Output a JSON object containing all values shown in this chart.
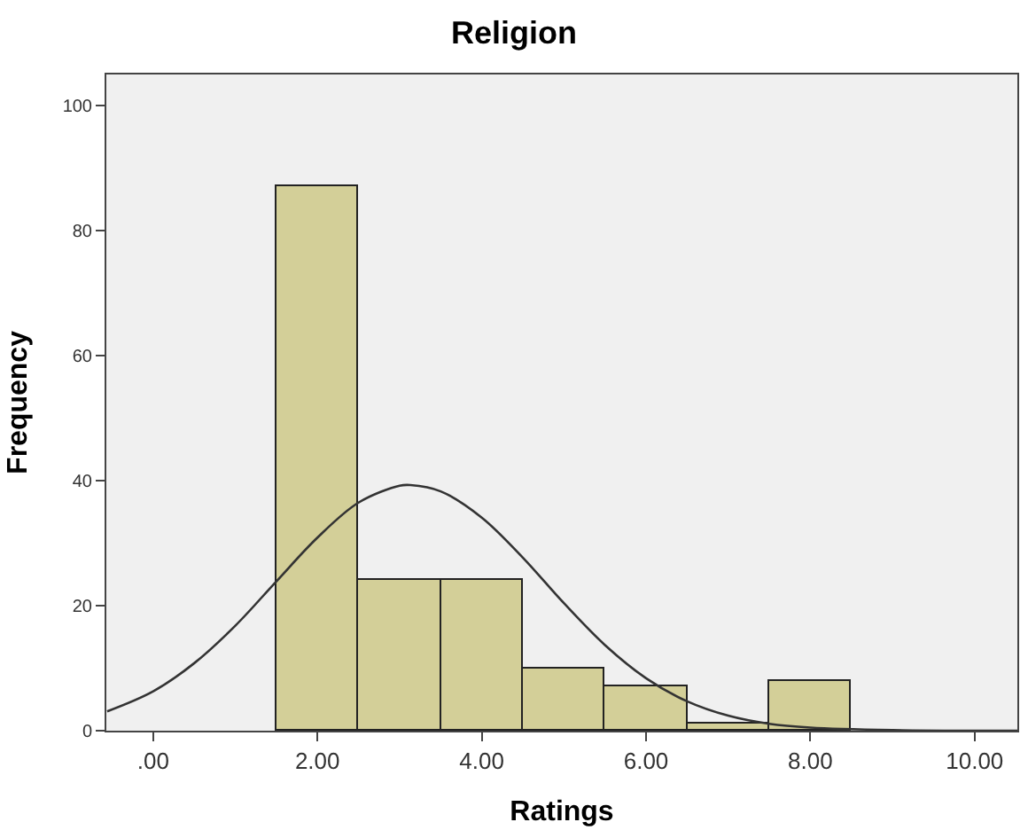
{
  "chart_data": {
    "type": "histogram",
    "title": "Religion",
    "xlabel": "Ratings",
    "ylabel": "Frequency",
    "bins": [
      1.5,
      2.5,
      3.5,
      4.5,
      5.5,
      6.5,
      7.5,
      8.5
    ],
    "values": [
      87,
      24,
      24,
      10,
      7,
      1,
      8
    ],
    "color": "#d3cf98",
    "series": [
      {
        "type": "line",
        "color": "#333333",
        "x": [
          -0.56,
          0,
          0.5,
          1,
          1.5,
          2,
          2.5,
          3,
          3.13,
          3.5,
          4,
          4.5,
          5,
          5.5,
          6,
          6.5,
          7,
          7.5,
          8,
          9,
          10,
          10.52
        ],
        "values": [
          3.1,
          6.3,
          10.8,
          16.8,
          23.9,
          30.9,
          36.5,
          39.2,
          39.3,
          38.3,
          34.1,
          27.7,
          20.4,
          13.7,
          8.4,
          4.7,
          2.4,
          1.1,
          0.5,
          0.1,
          0,
          0
        ]
      }
    ],
    "xlim": [
      -0.57,
      10.52
    ],
    "xticks": [
      {
        "value": 0,
        "label": ".00"
      },
      {
        "value": 2,
        "label": "2.00"
      },
      {
        "value": 4,
        "label": "4.00"
      },
      {
        "value": 6,
        "label": "6.00"
      },
      {
        "value": 8,
        "label": "8.00"
      },
      {
        "value": 10,
        "label": "10.00"
      }
    ],
    "ylim": [
      0,
      105
    ],
    "yticks": [
      0,
      20,
      40,
      60,
      80,
      100
    ],
    "grid": false
  }
}
